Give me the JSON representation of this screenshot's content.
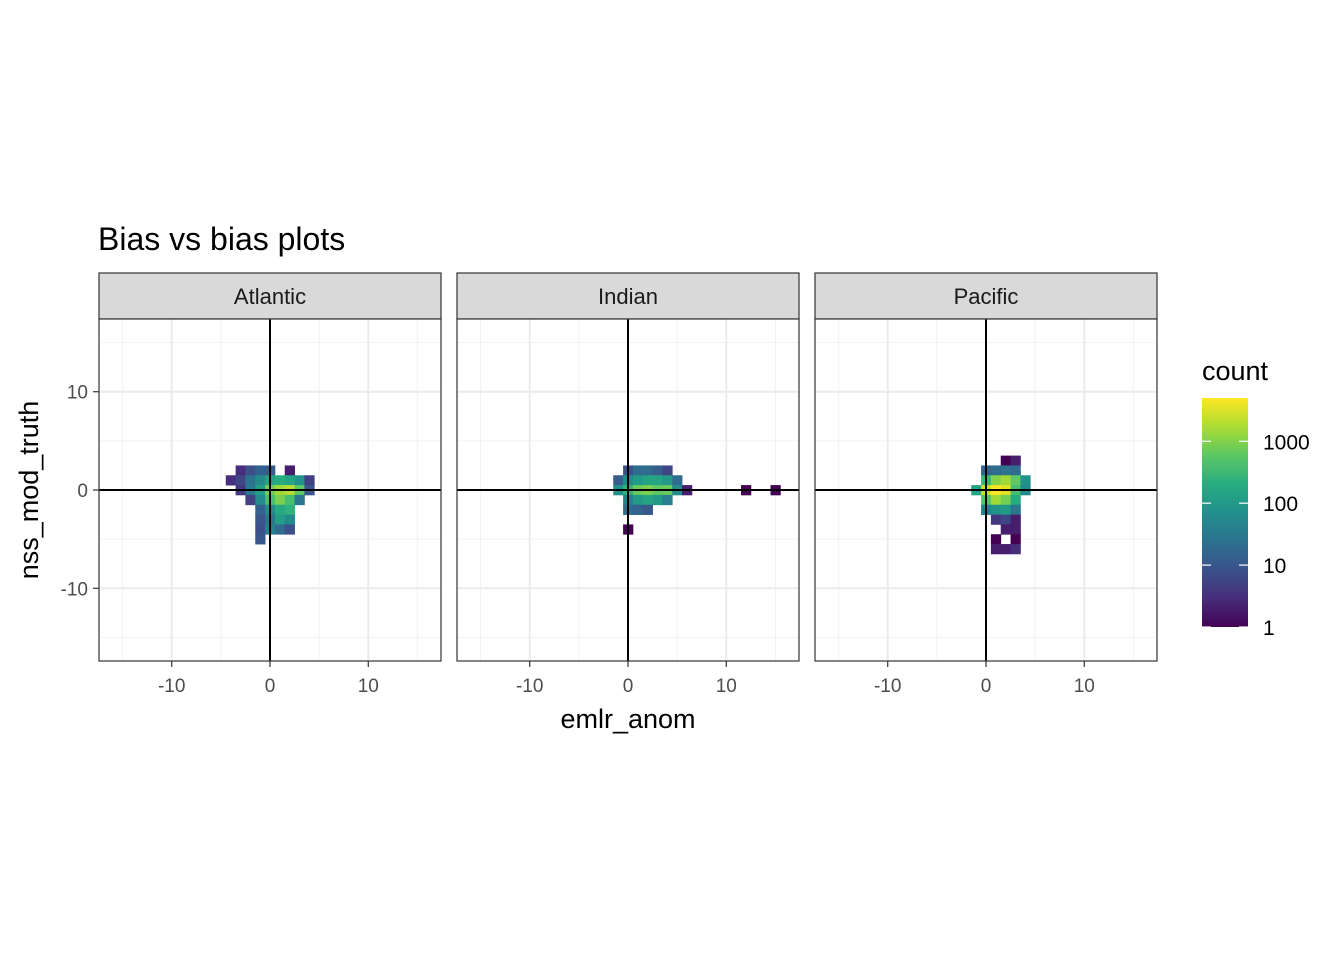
{
  "chart_data": {
    "type": "heatmap",
    "title": "Bias vs bias plots",
    "xlabel": "emlr_anom",
    "ylabel": "nss_mod_truth",
    "xlim": [
      -17.4,
      17.4
    ],
    "ylim": [
      -17.4,
      17.4
    ],
    "x_ticks": [
      -10,
      0,
      10
    ],
    "x_tick_labels": [
      "-10",
      "0",
      "10"
    ],
    "y_ticks": [
      -10,
      0,
      10
    ],
    "y_tick_labels": [
      "-10",
      "0",
      "10"
    ],
    "bin_width": 1,
    "reference_lines": {
      "x": 0,
      "y": 0
    },
    "grid": true,
    "fill_scale": "viridis",
    "fill_transform": "log10",
    "legend": {
      "title": "count",
      "position": "right",
      "breaks": [
        1,
        10,
        100,
        1000
      ],
      "labels": [
        "1",
        "10",
        "100",
        "1000"
      ],
      "range": [
        1,
        5000
      ]
    },
    "panels": [
      {
        "name": "Atlantic",
        "bins": [
          [
            -3,
            2,
            3
          ],
          [
            -2,
            2,
            8
          ],
          [
            -1,
            2,
            15
          ],
          [
            0,
            2,
            12
          ],
          [
            2,
            2,
            2
          ],
          [
            -4,
            1,
            3
          ],
          [
            -3,
            1,
            6
          ],
          [
            -2,
            1,
            25
          ],
          [
            -1,
            1,
            60
          ],
          [
            0,
            1,
            150
          ],
          [
            1,
            1,
            200
          ],
          [
            2,
            1,
            150
          ],
          [
            3,
            1,
            80
          ],
          [
            4,
            1,
            5
          ],
          [
            -3,
            0,
            4
          ],
          [
            -2,
            0,
            30
          ],
          [
            -1,
            0,
            120
          ],
          [
            0,
            0,
            800
          ],
          [
            1,
            0,
            1500
          ],
          [
            2,
            0,
            2000
          ],
          [
            3,
            0,
            600
          ],
          [
            4,
            0,
            10
          ],
          [
            -2,
            -1,
            5
          ],
          [
            -1,
            -1,
            60
          ],
          [
            0,
            -1,
            400
          ],
          [
            1,
            -1,
            900
          ],
          [
            2,
            -1,
            400
          ],
          [
            3,
            -1,
            30
          ],
          [
            -1,
            -2,
            15
          ],
          [
            0,
            -2,
            60
          ],
          [
            1,
            -2,
            180
          ],
          [
            2,
            -2,
            250
          ],
          [
            -1,
            -3,
            10
          ],
          [
            0,
            -3,
            30
          ],
          [
            1,
            -3,
            120
          ],
          [
            2,
            -3,
            60
          ],
          [
            -1,
            -4,
            8
          ],
          [
            0,
            -4,
            40
          ],
          [
            1,
            -4,
            20
          ],
          [
            2,
            -4,
            8
          ],
          [
            -1,
            -5,
            10
          ]
        ]
      },
      {
        "name": "Indian",
        "bins": [
          [
            0,
            2,
            8
          ],
          [
            1,
            2,
            20
          ],
          [
            2,
            2,
            20
          ],
          [
            3,
            2,
            12
          ],
          [
            4,
            2,
            6
          ],
          [
            -1,
            1,
            12
          ],
          [
            0,
            1,
            60
          ],
          [
            1,
            1,
            100
          ],
          [
            2,
            1,
            150
          ],
          [
            3,
            1,
            140
          ],
          [
            4,
            1,
            100
          ],
          [
            5,
            1,
            20
          ],
          [
            -1,
            0,
            80
          ],
          [
            0,
            0,
            250
          ],
          [
            1,
            0,
            700
          ],
          [
            2,
            0,
            900
          ],
          [
            3,
            0,
            600
          ],
          [
            4,
            0,
            700
          ],
          [
            5,
            0,
            60
          ],
          [
            6,
            0,
            2
          ],
          [
            12,
            0,
            1
          ],
          [
            15,
            0,
            1
          ],
          [
            0,
            -1,
            40
          ],
          [
            1,
            -1,
            100
          ],
          [
            2,
            -1,
            150
          ],
          [
            3,
            -1,
            100
          ],
          [
            4,
            -1,
            40
          ],
          [
            0,
            -2,
            20
          ],
          [
            1,
            -2,
            15
          ],
          [
            2,
            -2,
            10
          ],
          [
            0,
            -4,
            1
          ]
        ]
      },
      {
        "name": "Pacific",
        "bins": [
          [
            2,
            3,
            1
          ],
          [
            3,
            3,
            2
          ],
          [
            0,
            2,
            15
          ],
          [
            1,
            2,
            20
          ],
          [
            2,
            2,
            25
          ],
          [
            3,
            2,
            20
          ],
          [
            0,
            1,
            300
          ],
          [
            1,
            1,
            1000
          ],
          [
            2,
            1,
            1500
          ],
          [
            3,
            1,
            600
          ],
          [
            4,
            1,
            80
          ],
          [
            -1,
            0,
            150
          ],
          [
            0,
            0,
            2500
          ],
          [
            1,
            0,
            5000
          ],
          [
            2,
            0,
            3500
          ],
          [
            3,
            0,
            400
          ],
          [
            4,
            0,
            60
          ],
          [
            0,
            -1,
            500
          ],
          [
            1,
            -1,
            1500
          ],
          [
            2,
            -1,
            800
          ],
          [
            3,
            -1,
            200
          ],
          [
            0,
            -2,
            40
          ],
          [
            1,
            -2,
            80
          ],
          [
            2,
            -2,
            100
          ],
          [
            3,
            -2,
            30
          ],
          [
            1,
            -3,
            4
          ],
          [
            2,
            -3,
            6
          ],
          [
            3,
            -3,
            2
          ],
          [
            2,
            -4,
            2
          ],
          [
            3,
            -4,
            2
          ],
          [
            1,
            -5,
            1
          ],
          [
            3,
            -5,
            1
          ],
          [
            1,
            -6,
            2
          ],
          [
            2,
            -6,
            2
          ],
          [
            3,
            -6,
            3
          ]
        ]
      }
    ]
  }
}
